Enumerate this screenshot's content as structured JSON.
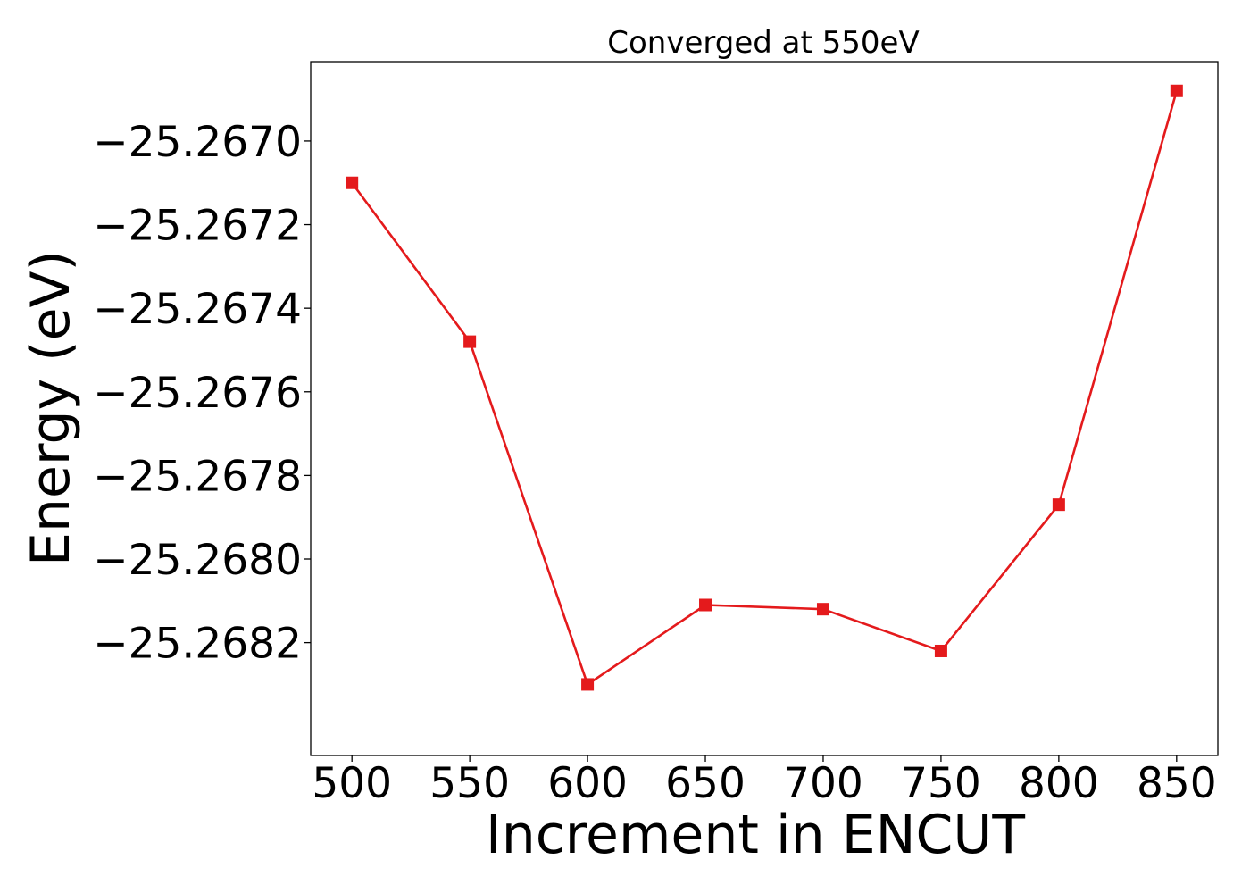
{
  "chart_data": {
    "type": "line",
    "title": "Converged at 550eV",
    "xlabel": "Increment in ENCUT",
    "ylabel": "Energy (eV)",
    "x": [
      500,
      550,
      600,
      650,
      700,
      750,
      800,
      850
    ],
    "series": [
      {
        "values": [
          -25.2671,
          -25.26748,
          -25.2683,
          -25.26811,
          -25.26812,
          -25.26822,
          -25.26787,
          -25.26688
        ],
        "color": "#e41a1c",
        "marker": "square"
      }
    ],
    "xlim": [
      482.5,
      867.5
    ],
    "ylim": [
      -25.26847,
      -25.26681
    ],
    "xticks": [
      500,
      550,
      600,
      650,
      700,
      750,
      800,
      850
    ],
    "xtick_labels": [
      "500",
      "550",
      "600",
      "650",
      "700",
      "750",
      "800",
      "850"
    ],
    "yticks": [
      -25.267,
      -25.2672,
      -25.2674,
      -25.2676,
      -25.2678,
      -25.268,
      -25.2682
    ],
    "ytick_labels": [
      "−25.2670",
      "−25.2672",
      "−25.2674",
      "−25.2676",
      "−25.2678",
      "−25.2680",
      "−25.2682"
    ],
    "grid": false,
    "legend": false
  }
}
